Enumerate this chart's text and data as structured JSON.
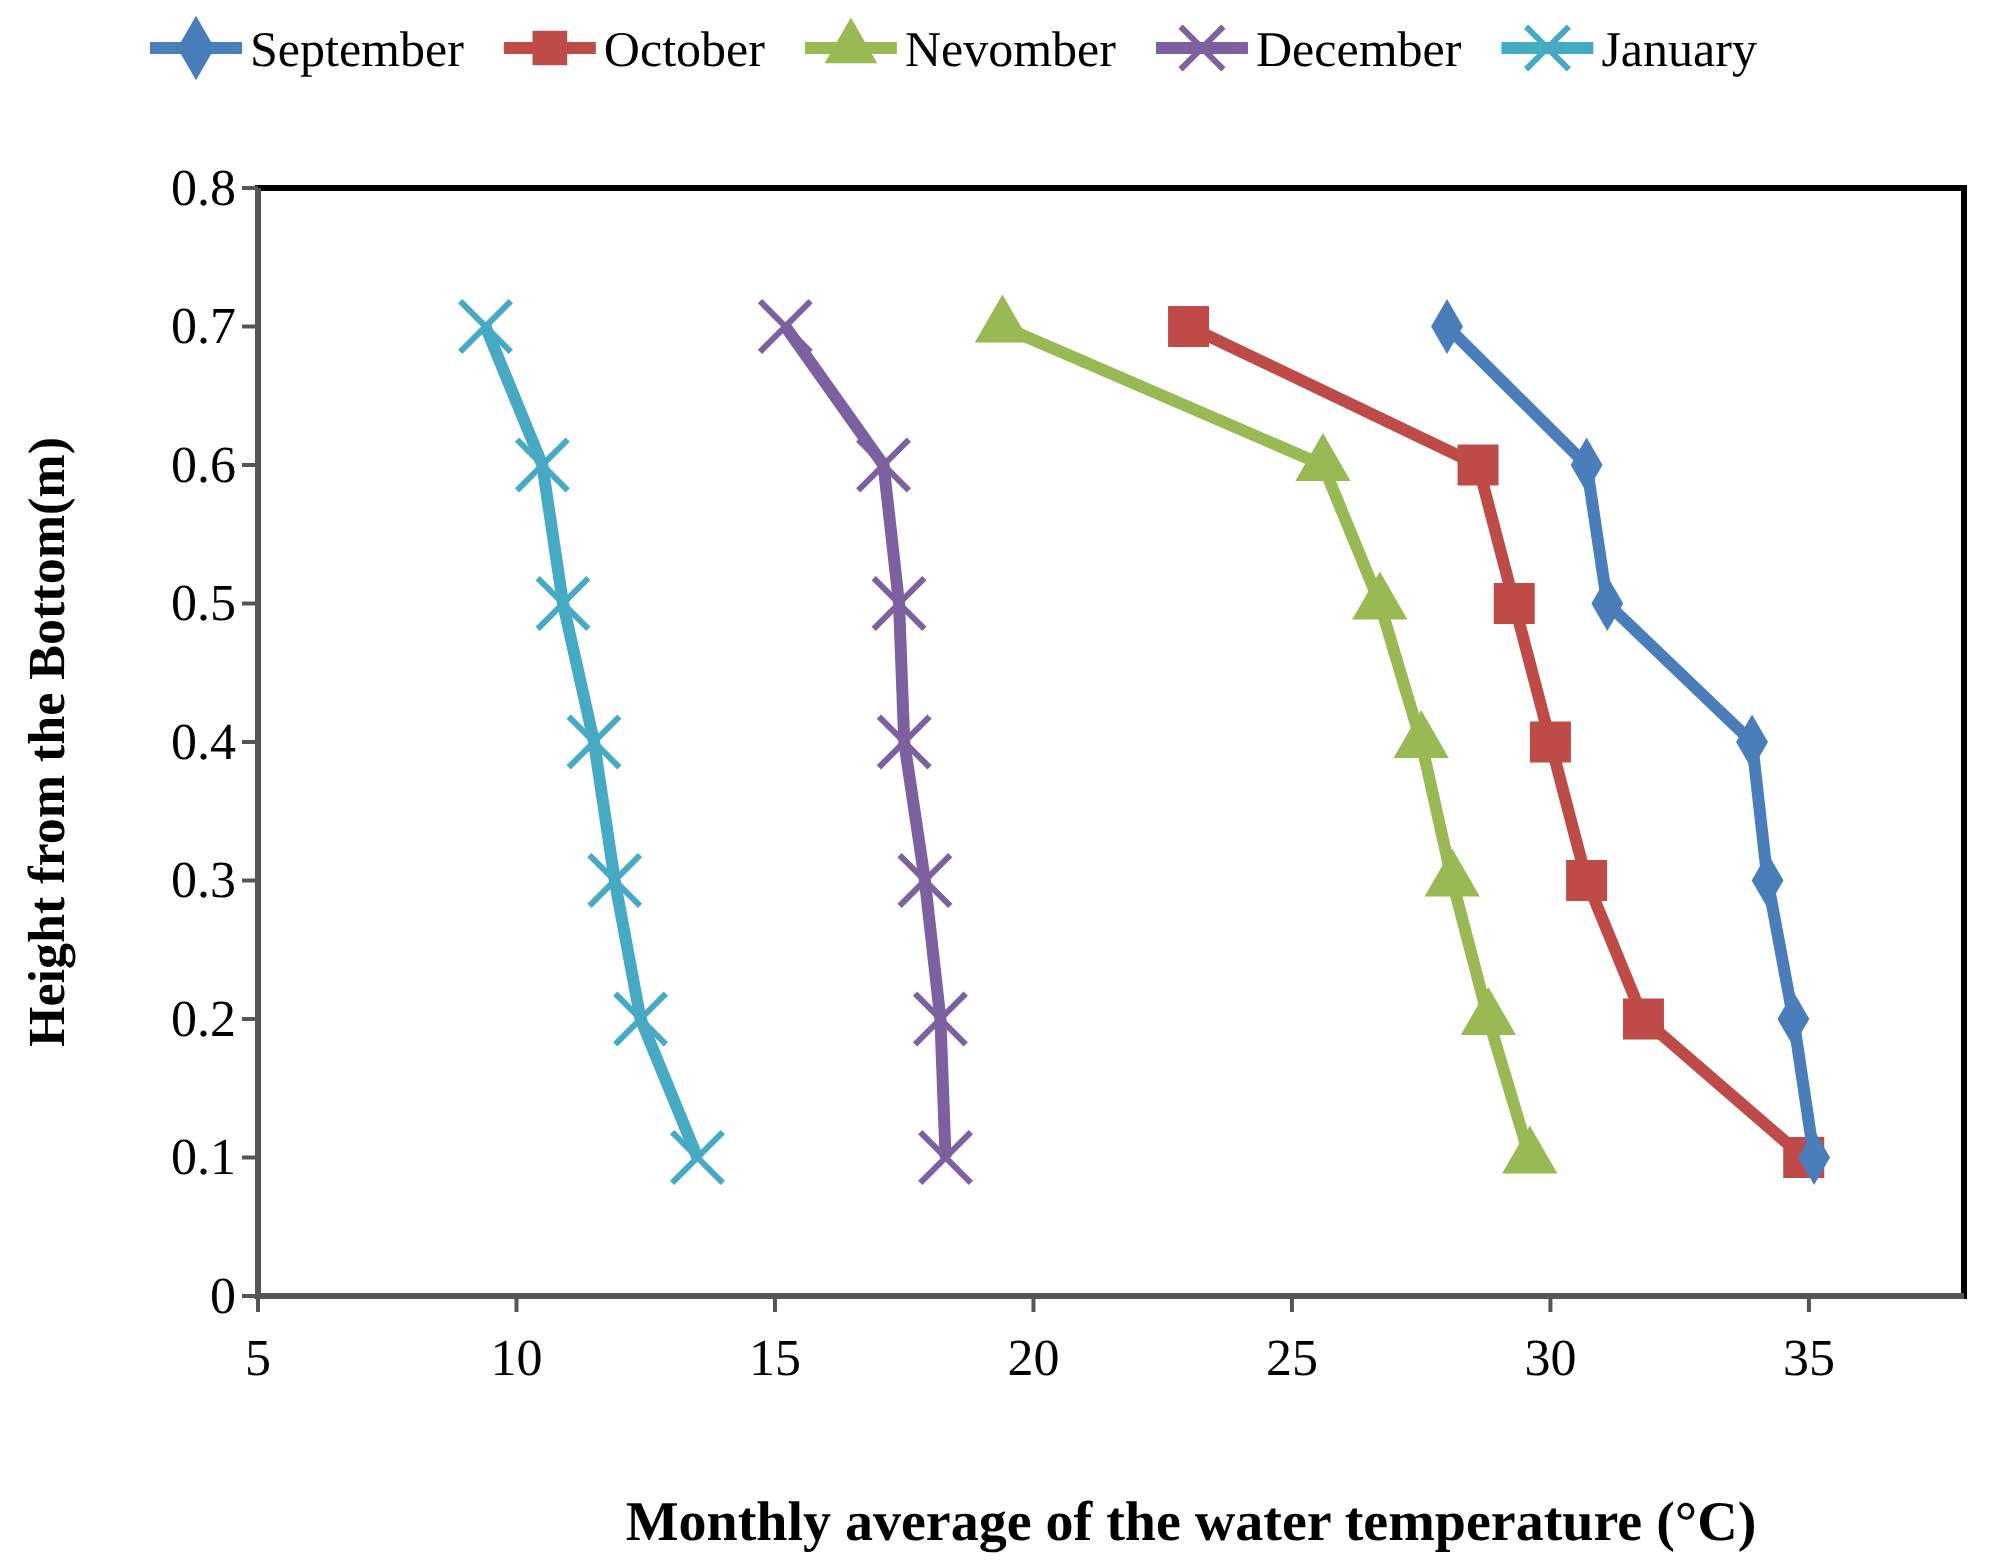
{
  "chart_data": {
    "type": "line",
    "xlabel": "Monthly average of the water temperature (°C)",
    "ylabel": "Height from the Bottom(m)",
    "xlim": [
      5,
      38
    ],
    "xticks": [
      5,
      10,
      15,
      20,
      25,
      30,
      35
    ],
    "ylim": [
      0,
      0.8
    ],
    "yticks": [
      0,
      0.1,
      0.2,
      0.3,
      0.4,
      0.5,
      0.6,
      0.7,
      0.8
    ],
    "grid": false,
    "legend": "top",
    "line_style": "solid",
    "series": [
      {
        "name": "September",
        "color": "#4a7ebb",
        "marker": "diamond",
        "x": [
          28.0,
          30.7,
          31.1,
          33.9,
          34.2,
          34.7,
          35.1
        ],
        "values": [
          0.7,
          0.6,
          0.5,
          0.4,
          0.3,
          0.2,
          0.1
        ]
      },
      {
        "name": "October",
        "color": "#be4b48",
        "marker": "square",
        "x": [
          23.0,
          28.6,
          29.3,
          30.0,
          30.7,
          31.8,
          34.9
        ],
        "values": [
          0.7,
          0.6,
          0.5,
          0.4,
          0.3,
          0.2,
          0.1
        ]
      },
      {
        "name": "Nevomber",
        "color": "#98b954",
        "marker": "triangle",
        "x": [
          19.4,
          25.6,
          26.7,
          27.5,
          28.1,
          28.8,
          29.6
        ],
        "values": [
          0.7,
          0.6,
          0.5,
          0.4,
          0.3,
          0.2,
          0.1
        ]
      },
      {
        "name": "December",
        "color": "#7d60a0",
        "marker": "cross",
        "x": [
          15.2,
          17.1,
          17.4,
          17.5,
          17.9,
          18.2,
          18.3
        ],
        "values": [
          0.7,
          0.6,
          0.5,
          0.4,
          0.3,
          0.2,
          0.1
        ]
      },
      {
        "name": "January",
        "color": "#46aac5",
        "marker": "cross",
        "x": [
          9.4,
          10.5,
          10.9,
          11.5,
          11.9,
          12.4,
          13.5
        ],
        "values": [
          0.7,
          0.6,
          0.5,
          0.4,
          0.3,
          0.2,
          0.1
        ]
      }
    ]
  }
}
